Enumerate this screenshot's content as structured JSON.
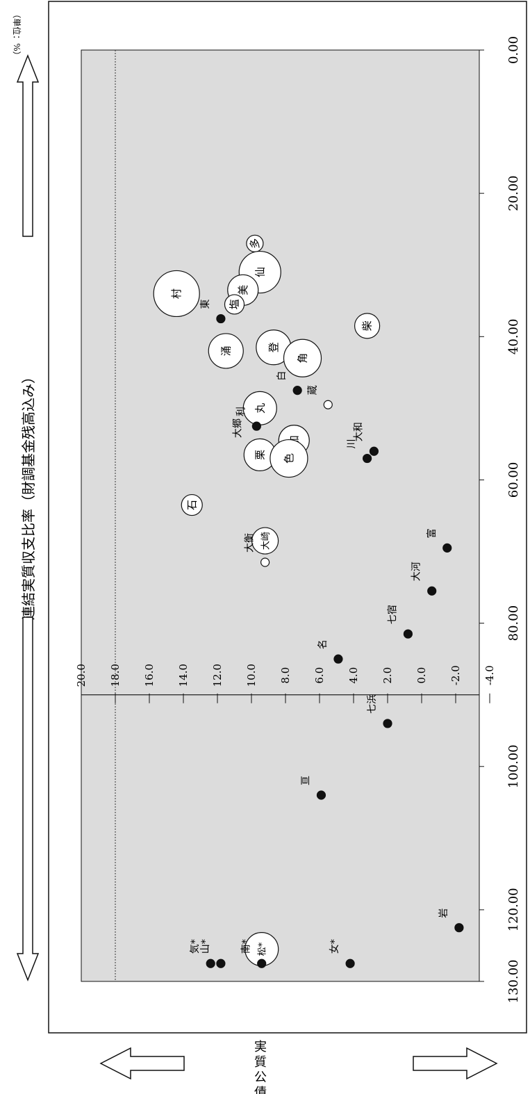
{
  "chart_data": {
    "type": "scatter",
    "title": "連結実質収支比率（財調基金残高込み）",
    "unit_note": "（単位：%）",
    "xlabel": "実質公債費比率",
    "x_ticks": [
      "0.00",
      "20.00",
      "40.00",
      "60.00",
      "80.00",
      "100.00",
      "120.00",
      "130.00"
    ],
    "y_ticks": [
      "20.0",
      "18.0",
      "16.0",
      "14.0",
      "12.0",
      "10.0",
      "8.0",
      "6.0",
      "4.0",
      "2.0",
      "0.0",
      "-2.0",
      "-4.0"
    ],
    "xlim": [
      0,
      130
    ],
    "ylim": [
      -5,
      20
    ],
    "reference_line_y": 18.0,
    "points": [
      {
        "label": "多",
        "x": 27,
        "y": 9.8,
        "marker": "bubble",
        "r": 12
      },
      {
        "label": "仙",
        "x": 31,
        "y": 9.5,
        "marker": "bubble",
        "r": 30
      },
      {
        "label": "美",
        "x": 33.5,
        "y": 10.5,
        "marker": "bubble",
        "r": 22
      },
      {
        "label": "塩",
        "x": 35.5,
        "y": 11.0,
        "marker": "bubble",
        "r": 14
      },
      {
        "label": "村",
        "x": 34,
        "y": 14.4,
        "marker": "bubble",
        "r": 33
      },
      {
        "label": "東",
        "x": 37.5,
        "y": 11.8,
        "marker": "dot"
      },
      {
        "label": "柴",
        "x": 38.5,
        "y": 3.2,
        "marker": "bubble",
        "r": 18
      },
      {
        "label": "涌",
        "x": 42,
        "y": 11.5,
        "marker": "bubble",
        "r": 25
      },
      {
        "label": "登",
        "x": 41.5,
        "y": 8.7,
        "marker": "bubble",
        "r": 25
      },
      {
        "label": "角",
        "x": 43,
        "y": 7.0,
        "marker": "bubble",
        "r": 27
      },
      {
        "label": "白",
        "x": 47.5,
        "y": 7.3,
        "marker": "dot"
      },
      {
        "label": "蔵",
        "x": 49.5,
        "y": 5.5,
        "marker": "hollow"
      },
      {
        "label": "丸",
        "x": 50,
        "y": 9.5,
        "marker": "bubble",
        "r": 24
      },
      {
        "label": "利",
        "x": 52.5,
        "y": 9.7,
        "marker": "dot"
      },
      {
        "label": "加",
        "x": 54.5,
        "y": 7.5,
        "marker": "bubble",
        "r": 22
      },
      {
        "label": "大郷",
        "x": 55.5,
        "y": 9.9,
        "marker": "hollow"
      },
      {
        "label": "栗",
        "x": 56.5,
        "y": 9.5,
        "marker": "bubble",
        "r": 23
      },
      {
        "label": "色",
        "x": 57,
        "y": 7.8,
        "marker": "bubble",
        "r": 27
      },
      {
        "label": "大和",
        "x": 56,
        "y": 2.8,
        "marker": "dot"
      },
      {
        "label": "川",
        "x": 57,
        "y": 3.2,
        "marker": "dot"
      },
      {
        "label": "石",
        "x": 63.5,
        "y": 13.5,
        "marker": "bubble",
        "r": 15
      },
      {
        "label": "大崎",
        "x": 68.5,
        "y": 9.2,
        "marker": "bubble",
        "r": 19
      },
      {
        "label": "大衡",
        "x": 71.5,
        "y": 9.2,
        "marker": "hollow"
      },
      {
        "label": "富",
        "x": 69.5,
        "y": -1.5,
        "marker": "dot"
      },
      {
        "label": "大河",
        "x": 75.5,
        "y": -0.6,
        "marker": "dot"
      },
      {
        "label": "七宿",
        "x": 81.5,
        "y": 0.8,
        "marker": "dot"
      },
      {
        "label": "名",
        "x": 85,
        "y": 4.9,
        "marker": "dot"
      },
      {
        "label": "七浜",
        "x": 94,
        "y": 2.0,
        "marker": "dot"
      },
      {
        "label": "亘",
        "x": 104,
        "y": 5.9,
        "marker": "dot"
      },
      {
        "label": "岩",
        "x": 122.5,
        "y": -2.2,
        "marker": "dot"
      },
      {
        "label": "松*",
        "x": 125.5,
        "y": 9.4,
        "marker": "bubble",
        "r": 24
      },
      {
        "label": "南*",
        "x": 127.5,
        "y": 9.4,
        "marker": "dot"
      },
      {
        "label": "気*",
        "x": 127.5,
        "y": 12.4,
        "marker": "dot"
      },
      {
        "label": "山*",
        "x": 127.5,
        "y": 11.8,
        "marker": "dot"
      },
      {
        "label": "女*",
        "x": 127.5,
        "y": 4.2,
        "marker": "dot"
      }
    ]
  }
}
